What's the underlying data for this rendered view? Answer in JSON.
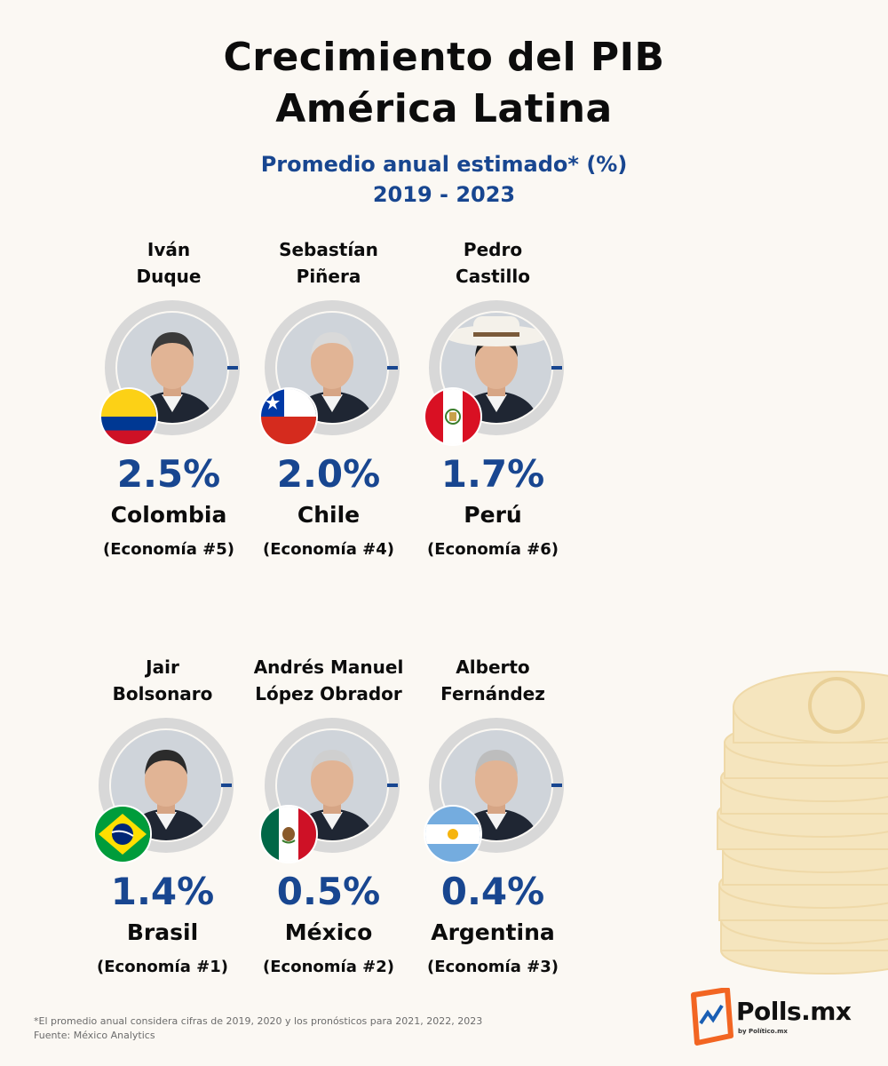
{
  "header": {
    "title_line1": "Crecimiento del PIB",
    "title_line2": "América Latina",
    "subtitle_line1": "Promedio anual estimado* (%)",
    "subtitle_line2": "2019 - 2023"
  },
  "cards": [
    {
      "leader_line1": "Iván",
      "leader_line2": "Duque",
      "value": "2.5%",
      "country": "Colombia",
      "rank": "(Economía #5)",
      "flag": "colombia"
    },
    {
      "leader_line1": "Sebastían",
      "leader_line2": "Piñera",
      "value": "2.0%",
      "country": "Chile",
      "rank": "(Economía #4)",
      "flag": "chile"
    },
    {
      "leader_line1": "Pedro",
      "leader_line2": "Castillo",
      "value": "1.7%",
      "country": "Perú",
      "rank": "(Economía #6)",
      "flag": "peru"
    },
    {
      "leader_line1": "Jair",
      "leader_line2": "Bolsonaro",
      "value": "1.4%",
      "country": "Brasil",
      "rank": "(Economía #1)",
      "flag": "brazil"
    },
    {
      "leader_line1": "Andrés Manuel",
      "leader_line2": "López Obrador",
      "value": "0.5%",
      "country": "México",
      "rank": "(Economía #2)",
      "flag": "mexico"
    },
    {
      "leader_line1": "Alberto",
      "leader_line2": "Fernández",
      "value": "0.4%",
      "country": "Argentina",
      "rank": "(Economía #3)",
      "flag": "argentina"
    }
  ],
  "footer": {
    "note": "*El promedio anual considera cifras de 2019, 2020 y los pronósticos para 2021, 2022, 2023",
    "source": "Fuente: México Analytics"
  },
  "logo": {
    "name": "Polls.mx",
    "by": "by Político.mx"
  },
  "colors": {
    "accent": "#184690",
    "ring": "#d8d8d8",
    "background": "#fbf8f3",
    "logo_orange": "#f26522"
  }
}
